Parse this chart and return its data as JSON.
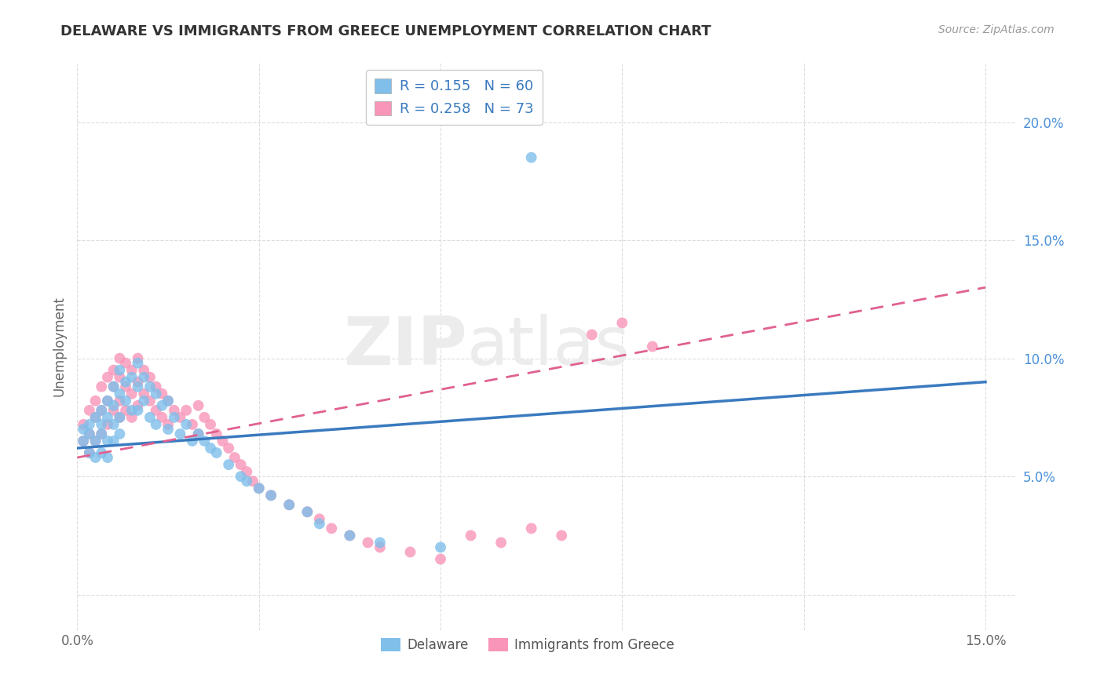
{
  "title": "DELAWARE VS IMMIGRANTS FROM GREECE UNEMPLOYMENT CORRELATION CHART",
  "source": "Source: ZipAtlas.com",
  "ylabel": "Unemployment",
  "xlim": [
    0.0,
    0.155
  ],
  "ylim": [
    -0.015,
    0.225
  ],
  "color_delaware": "#7fbfea",
  "color_greece": "#f895b8",
  "color_delaware_line": "#3a7abf",
  "color_greece_line": "#e06090",
  "background_color": "#ffffff",
  "grid_color": "#dddddd",
  "legend_label1": "Delaware",
  "legend_label2": "Immigrants from Greece",
  "del_line_x0": 0.0,
  "del_line_y0": 0.062,
  "del_line_x1": 0.15,
  "del_line_y1": 0.09,
  "gre_line_x0": 0.0,
  "gre_line_y0": 0.058,
  "gre_line_x1": 0.15,
  "gre_line_y1": 0.13,
  "del_x": [
    0.001,
    0.001,
    0.002,
    0.002,
    0.002,
    0.003,
    0.003,
    0.003,
    0.004,
    0.004,
    0.004,
    0.004,
    0.005,
    0.005,
    0.005,
    0.005,
    0.006,
    0.006,
    0.006,
    0.006,
    0.007,
    0.007,
    0.007,
    0.007,
    0.008,
    0.008,
    0.009,
    0.009,
    0.01,
    0.01,
    0.01,
    0.011,
    0.011,
    0.012,
    0.012,
    0.013,
    0.013,
    0.014,
    0.015,
    0.015,
    0.016,
    0.017,
    0.018,
    0.019,
    0.02,
    0.021,
    0.022,
    0.023,
    0.025,
    0.027,
    0.028,
    0.03,
    0.032,
    0.035,
    0.038,
    0.04,
    0.045,
    0.05,
    0.06,
    0.075
  ],
  "del_y": [
    0.07,
    0.065,
    0.068,
    0.06,
    0.072,
    0.075,
    0.065,
    0.058,
    0.078,
    0.068,
    0.06,
    0.072,
    0.082,
    0.075,
    0.065,
    0.058,
    0.088,
    0.08,
    0.072,
    0.065,
    0.095,
    0.085,
    0.075,
    0.068,
    0.09,
    0.082,
    0.092,
    0.078,
    0.098,
    0.088,
    0.078,
    0.092,
    0.082,
    0.088,
    0.075,
    0.085,
    0.072,
    0.08,
    0.082,
    0.07,
    0.075,
    0.068,
    0.072,
    0.065,
    0.068,
    0.065,
    0.062,
    0.06,
    0.055,
    0.05,
    0.048,
    0.045,
    0.042,
    0.038,
    0.035,
    0.03,
    0.025,
    0.022,
    0.02,
    0.185
  ],
  "gre_x": [
    0.001,
    0.001,
    0.002,
    0.002,
    0.002,
    0.003,
    0.003,
    0.003,
    0.004,
    0.004,
    0.004,
    0.005,
    0.005,
    0.005,
    0.006,
    0.006,
    0.006,
    0.007,
    0.007,
    0.007,
    0.007,
    0.008,
    0.008,
    0.008,
    0.009,
    0.009,
    0.009,
    0.01,
    0.01,
    0.01,
    0.011,
    0.011,
    0.012,
    0.012,
    0.013,
    0.013,
    0.014,
    0.014,
    0.015,
    0.015,
    0.016,
    0.017,
    0.018,
    0.019,
    0.02,
    0.02,
    0.021,
    0.022,
    0.023,
    0.024,
    0.025,
    0.026,
    0.027,
    0.028,
    0.029,
    0.03,
    0.032,
    0.035,
    0.038,
    0.04,
    0.042,
    0.045,
    0.048,
    0.05,
    0.055,
    0.06,
    0.065,
    0.07,
    0.075,
    0.08,
    0.085,
    0.09,
    0.095
  ],
  "gre_y": [
    0.072,
    0.065,
    0.078,
    0.068,
    0.06,
    0.082,
    0.075,
    0.065,
    0.088,
    0.078,
    0.068,
    0.092,
    0.082,
    0.072,
    0.095,
    0.088,
    0.078,
    0.1,
    0.092,
    0.082,
    0.075,
    0.098,
    0.088,
    0.078,
    0.095,
    0.085,
    0.075,
    0.1,
    0.09,
    0.08,
    0.095,
    0.085,
    0.092,
    0.082,
    0.088,
    0.078,
    0.085,
    0.075,
    0.082,
    0.072,
    0.078,
    0.075,
    0.078,
    0.072,
    0.08,
    0.068,
    0.075,
    0.072,
    0.068,
    0.065,
    0.062,
    0.058,
    0.055,
    0.052,
    0.048,
    0.045,
    0.042,
    0.038,
    0.035,
    0.032,
    0.028,
    0.025,
    0.022,
    0.02,
    0.018,
    0.015,
    0.025,
    0.022,
    0.028,
    0.025,
    0.11,
    0.115,
    0.105
  ]
}
